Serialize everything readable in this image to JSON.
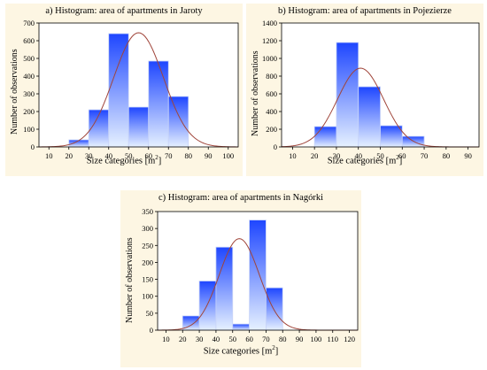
{
  "chart_data": [
    {
      "type": "bar",
      "title": "a) Histogram: area of apartments in Jaroty",
      "xlabel": "Size categories [m",
      "xlabel_sup": "2",
      "xlabel_close": "]",
      "ylabel": "Number of observations",
      "x_ticks": [
        10,
        20,
        30,
        40,
        50,
        60,
        70,
        80,
        90,
        100
      ],
      "y_ticks": [
        0,
        100,
        200,
        300,
        400,
        500,
        600,
        700
      ],
      "xlim": [
        5,
        105
      ],
      "ylim": [
        0,
        700
      ],
      "bin_width": 10,
      "bin_starts": [
        20,
        30,
        40,
        50,
        60,
        70
      ],
      "values": [
        40,
        210,
        640,
        225,
        485,
        285
      ],
      "normal_curve": {
        "mean": 55,
        "sd": 12.5,
        "peak": 645
      },
      "grid": false,
      "bar_color": "#4a78ff",
      "curve_color": "#a0453a"
    },
    {
      "type": "bar",
      "title": "b) Histogram: area of apartments in Pojezierze",
      "xlabel": "Size categories [m",
      "xlabel_sup": "2",
      "xlabel_close": "]",
      "ylabel": "Number of observations",
      "x_ticks": [
        10,
        20,
        30,
        40,
        50,
        60,
        70,
        80,
        90
      ],
      "y_ticks": [
        0,
        200,
        400,
        600,
        800,
        1000,
        1200,
        1400
      ],
      "xlim": [
        5,
        95
      ],
      "ylim": [
        0,
        1400
      ],
      "bin_width": 10,
      "bin_starts": [
        20,
        30,
        40,
        50,
        60
      ],
      "values": [
        230,
        1180,
        680,
        240,
        120
      ],
      "normal_curve": {
        "mean": 41,
        "sd": 10.5,
        "peak": 890
      },
      "grid": false,
      "bar_color": "#4a78ff",
      "curve_color": "#a0453a"
    },
    {
      "type": "bar",
      "title": "c) Histogram: area of apartments in Nagórki",
      "xlabel": "Size categories [m",
      "xlabel_sup": "2",
      "xlabel_close": "]",
      "ylabel": "Number of observations",
      "x_ticks": [
        10,
        20,
        30,
        40,
        50,
        60,
        70,
        80,
        90,
        100,
        110,
        120
      ],
      "y_ticks": [
        0,
        50,
        100,
        150,
        200,
        250,
        300,
        350
      ],
      "xlim": [
        5,
        125
      ],
      "ylim": [
        0,
        350
      ],
      "bin_width": 10,
      "bin_starts": [
        20,
        30,
        40,
        50,
        60,
        70
      ],
      "values": [
        42,
        145,
        245,
        18,
        325,
        125
      ],
      "normal_curve": {
        "mean": 54,
        "sd": 12,
        "peak": 270
      },
      "grid": false,
      "bar_color": "#4a78ff",
      "curve_color": "#a0453a"
    }
  ]
}
